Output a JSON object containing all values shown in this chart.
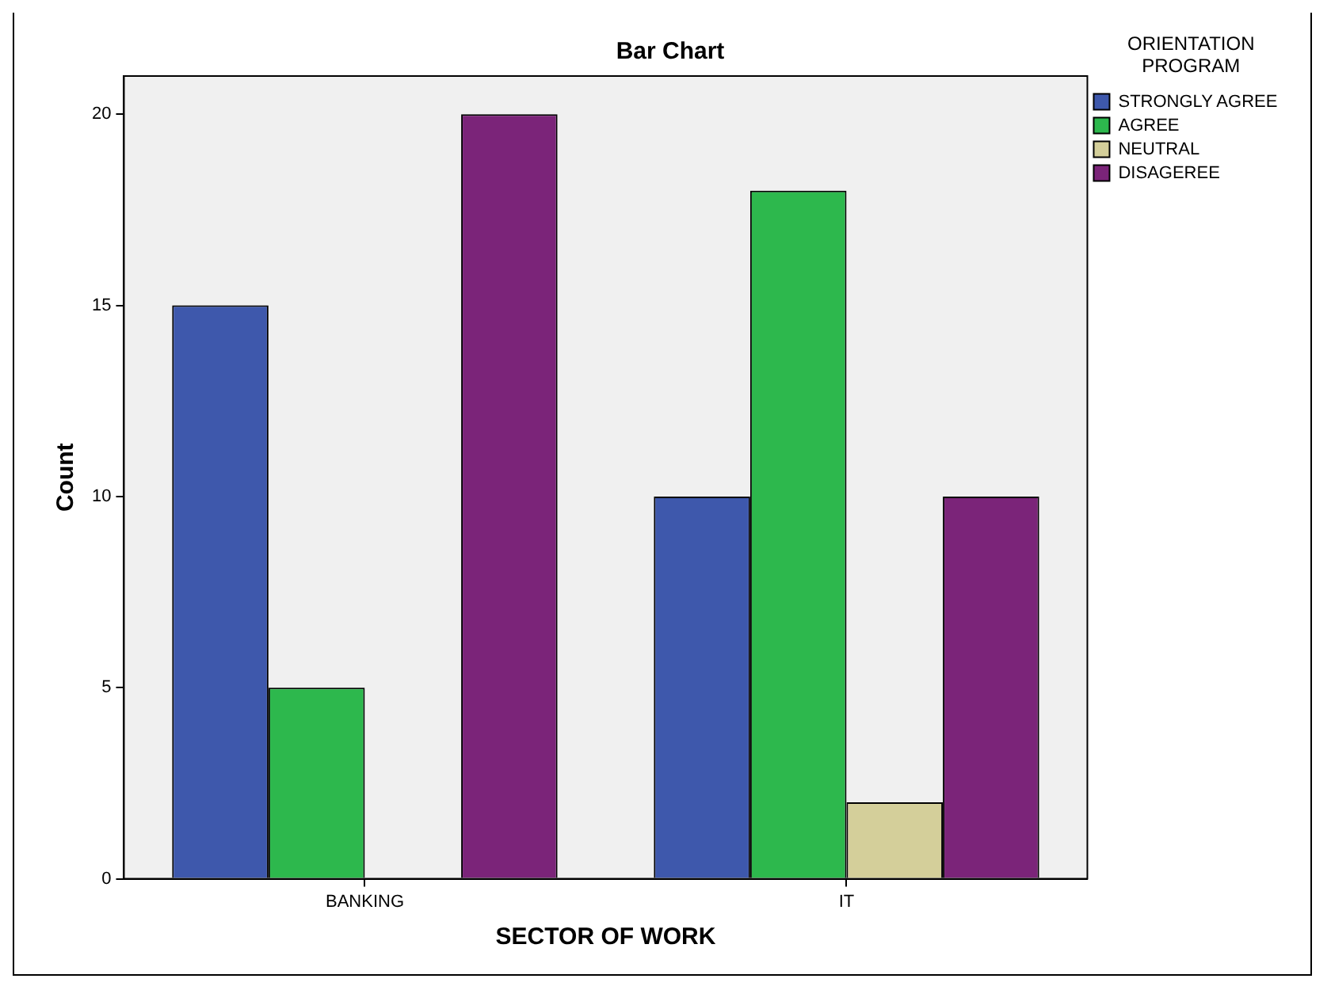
{
  "chart_data": {
    "type": "bar",
    "title": "Bar Chart",
    "xlabel": "SECTOR OF WORK",
    "ylabel": "Count",
    "legend_title": "ORIENTATION PROGRAM",
    "categories": [
      "BANKING",
      "IT"
    ],
    "series": [
      {
        "name": "STRONGLY AGREE",
        "color": "#3e58ac",
        "values": [
          15,
          10
        ]
      },
      {
        "name": "AGREE",
        "color": "#2db84d",
        "values": [
          5,
          18
        ]
      },
      {
        "name": "NEUTRAL",
        "color": "#d4cf9a",
        "values": [
          null,
          2
        ]
      },
      {
        "name": "DISAGEREE",
        "color": "#7b2479",
        "values": [
          20,
          10
        ]
      }
    ],
    "ylim": [
      0,
      21
    ],
    "yticks": [
      0,
      5,
      10,
      15,
      20
    ],
    "grid": false,
    "legend": "top right"
  }
}
